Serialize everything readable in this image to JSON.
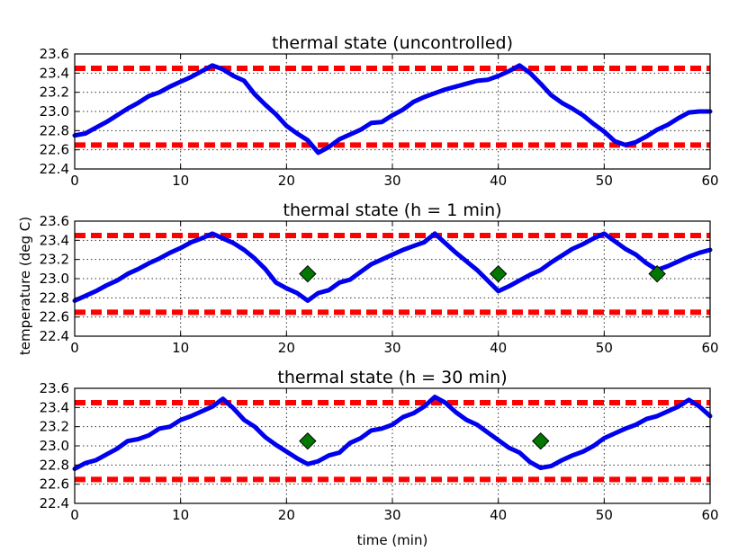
{
  "chart_data": {
    "type": "line",
    "shared_xlabel": "time (min)",
    "shared_ylabel": "temperature (deg C)",
    "colors": {
      "series": "#0000ee",
      "threshold": "#ff0000",
      "marker": "#007700"
    },
    "panels": [
      {
        "title": "thermal state (uncontrolled)",
        "xlim": [
          0,
          60
        ],
        "ylim": [
          22.4,
          23.6
        ],
        "xticks": [
          0,
          10,
          20,
          30,
          40,
          50,
          60
        ],
        "xtick_labels": [
          "0",
          "10",
          "20",
          "30",
          "40",
          "50",
          "60"
        ],
        "yticks": [
          22.4,
          22.6,
          22.8,
          23.0,
          23.2,
          23.4,
          23.6
        ],
        "ytick_labels": [
          "22.4",
          "22.6",
          "22.8",
          "23.0",
          "23.2",
          "23.4",
          "23.6"
        ],
        "grid": true,
        "thresholds": [
          23.45,
          22.65
        ],
        "series": {
          "x": [
            0,
            1,
            2,
            3,
            4,
            5,
            6,
            7,
            8,
            9,
            10,
            11,
            12,
            13,
            14,
            15,
            16,
            17,
            18,
            19,
            20,
            21,
            22,
            23,
            24,
            25,
            26,
            27,
            28,
            29,
            30,
            31,
            32,
            33,
            34,
            35,
            36,
            37,
            38,
            39,
            40,
            41,
            42,
            43,
            44,
            45,
            46,
            47,
            48,
            49,
            50,
            51,
            52,
            53,
            54,
            55,
            56,
            57,
            58,
            59,
            60
          ],
          "y": [
            22.75,
            22.77,
            22.83,
            22.89,
            22.96,
            23.03,
            23.09,
            23.16,
            23.2,
            23.26,
            23.31,
            23.36,
            23.42,
            23.48,
            23.44,
            23.37,
            23.32,
            23.18,
            23.07,
            22.97,
            22.85,
            22.77,
            22.7,
            22.57,
            22.63,
            22.71,
            22.76,
            22.81,
            22.88,
            22.89,
            22.96,
            23.02,
            23.1,
            23.15,
            23.19,
            23.23,
            23.26,
            23.29,
            23.32,
            23.33,
            23.37,
            23.42,
            23.48,
            23.4,
            23.29,
            23.17,
            23.09,
            23.03,
            22.96,
            22.87,
            22.79,
            22.69,
            22.65,
            22.68,
            22.74,
            22.81,
            22.86,
            22.93,
            22.99,
            23.0,
            23.0
          ]
        },
        "markers": []
      },
      {
        "title": "thermal state (h = 1 min)",
        "xlim": [
          0,
          60
        ],
        "ylim": [
          22.4,
          23.6
        ],
        "xticks": [
          0,
          10,
          20,
          30,
          40,
          50,
          60
        ],
        "xtick_labels": [
          "0",
          "10",
          "20",
          "30",
          "40",
          "50",
          "60"
        ],
        "yticks": [
          22.4,
          22.6,
          22.8,
          23.0,
          23.2,
          23.4,
          23.6
        ],
        "ytick_labels": [
          "22.4",
          "22.6",
          "22.8",
          "23.0",
          "23.2",
          "23.4",
          "23.6"
        ],
        "grid": true,
        "thresholds": [
          23.45,
          22.65
        ],
        "series": {
          "x": [
            0,
            1,
            2,
            3,
            4,
            5,
            6,
            7,
            8,
            9,
            10,
            11,
            12,
            13,
            14,
            15,
            16,
            17,
            18,
            19,
            20,
            21,
            22,
            23,
            24,
            25,
            26,
            27,
            28,
            29,
            30,
            31,
            32,
            33,
            34,
            35,
            36,
            37,
            38,
            39,
            40,
            41,
            42,
            43,
            44,
            45,
            46,
            47,
            48,
            49,
            50,
            51,
            52,
            53,
            54,
            55,
            56,
            57,
            58,
            59,
            60
          ],
          "y": [
            22.77,
            22.82,
            22.87,
            22.93,
            22.98,
            23.05,
            23.1,
            23.16,
            23.21,
            23.27,
            23.32,
            23.38,
            23.42,
            23.47,
            23.42,
            23.37,
            23.3,
            23.21,
            23.1,
            22.96,
            22.9,
            22.85,
            22.77,
            22.85,
            22.88,
            22.96,
            22.99,
            23.07,
            23.15,
            23.2,
            23.25,
            23.3,
            23.34,
            23.38,
            23.47,
            23.37,
            23.27,
            23.18,
            23.09,
            22.98,
            22.87,
            22.92,
            22.98,
            23.04,
            23.09,
            23.17,
            23.24,
            23.31,
            23.36,
            23.42,
            23.47,
            23.39,
            23.31,
            23.25,
            23.16,
            23.09,
            23.13,
            23.18,
            23.23,
            23.27,
            23.3
          ]
        },
        "markers": [
          {
            "x": 22,
            "y": 23.05
          },
          {
            "x": 40,
            "y": 23.05
          },
          {
            "x": 55,
            "y": 23.05
          }
        ]
      },
      {
        "title": "thermal state (h = 30 min)",
        "xlim": [
          0,
          60
        ],
        "ylim": [
          22.4,
          23.6
        ],
        "xticks": [
          0,
          10,
          20,
          30,
          40,
          50,
          60
        ],
        "xtick_labels": [
          "0",
          "10",
          "20",
          "30",
          "40",
          "50",
          "60"
        ],
        "yticks": [
          22.4,
          22.6,
          22.8,
          23.0,
          23.2,
          23.4,
          23.6
        ],
        "ytick_labels": [
          "22.4",
          "22.6",
          "22.8",
          "23.0",
          "23.2",
          "23.4",
          "23.6"
        ],
        "grid": true,
        "thresholds": [
          23.45,
          22.65
        ],
        "series": {
          "x": [
            0,
            1,
            2,
            3,
            4,
            5,
            6,
            7,
            8,
            9,
            10,
            11,
            12,
            13,
            14,
            15,
            16,
            17,
            18,
            19,
            20,
            21,
            22,
            23,
            24,
            25,
            26,
            27,
            28,
            29,
            30,
            31,
            32,
            33,
            34,
            35,
            36,
            37,
            38,
            39,
            40,
            41,
            42,
            43,
            44,
            45,
            46,
            47,
            48,
            49,
            50,
            51,
            52,
            53,
            54,
            55,
            56,
            57,
            58,
            59,
            60
          ],
          "y": [
            22.76,
            22.82,
            22.85,
            22.91,
            22.97,
            23.05,
            23.07,
            23.11,
            23.18,
            23.2,
            23.27,
            23.31,
            23.36,
            23.41,
            23.49,
            23.39,
            23.27,
            23.2,
            23.09,
            23.01,
            22.94,
            22.87,
            22.81,
            22.84,
            22.9,
            22.93,
            23.03,
            23.08,
            23.16,
            23.18,
            23.22,
            23.3,
            23.34,
            23.41,
            23.51,
            23.45,
            23.35,
            23.27,
            23.22,
            23.14,
            23.06,
            22.98,
            22.93,
            22.83,
            22.77,
            22.79,
            22.85,
            22.9,
            22.94,
            23.0,
            23.08,
            23.13,
            23.18,
            23.22,
            23.28,
            23.31,
            23.36,
            23.41,
            23.48,
            23.41,
            23.31
          ]
        },
        "markers": [
          {
            "x": 22,
            "y": 23.05
          },
          {
            "x": 44,
            "y": 23.05
          }
        ]
      }
    ]
  }
}
